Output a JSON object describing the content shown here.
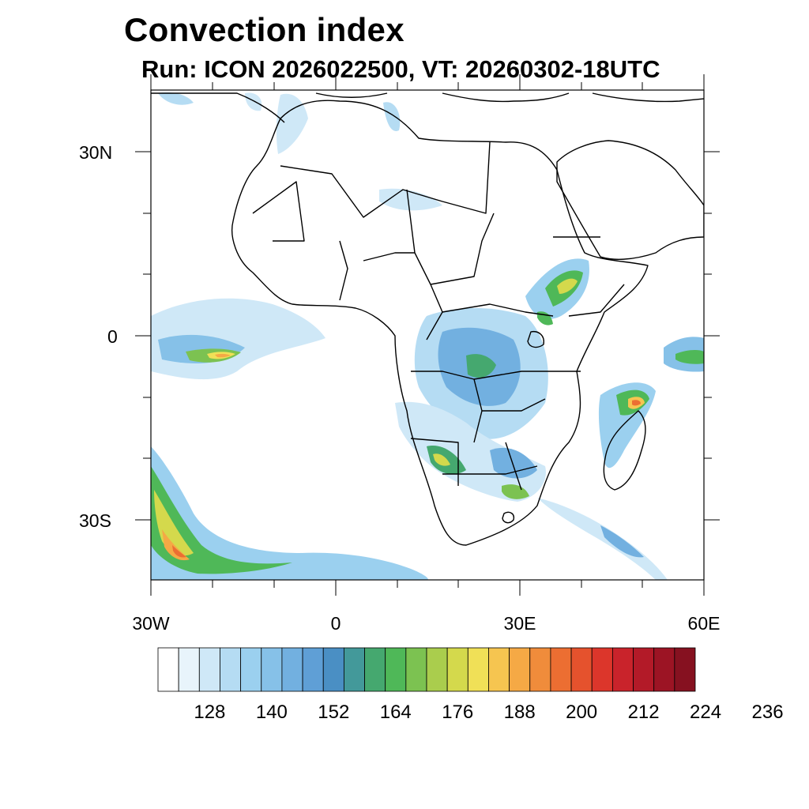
{
  "title": "Convection index",
  "subtitle": "Run: ICON 2026022500,  VT: 20260302-18UTC",
  "axes": {
    "lat_labels": [
      "30N",
      "0",
      "30S"
    ],
    "lon_labels": [
      "30W",
      "0",
      "30E",
      "60E"
    ]
  },
  "colorbar": {
    "labels": [
      "128",
      "140",
      "152",
      "164",
      "176",
      "188",
      "200",
      "212",
      "224",
      "236"
    ],
    "colors": [
      "#ffffff",
      "#e8f4fb",
      "#cfe8f7",
      "#b5dcf3",
      "#9bd0ef",
      "#86c1e8",
      "#72b0e0",
      "#5f9fd6",
      "#4a8fc4",
      "#43999a",
      "#45a86f",
      "#4fb858",
      "#7cc251",
      "#aacd4d",
      "#d4d94c",
      "#f0e057",
      "#f6c550",
      "#f5a945",
      "#f08c3b",
      "#ec6e32",
      "#e5522d",
      "#dc362b",
      "#c9232b",
      "#b31a28",
      "#9c1424",
      "#861120"
    ]
  }
}
